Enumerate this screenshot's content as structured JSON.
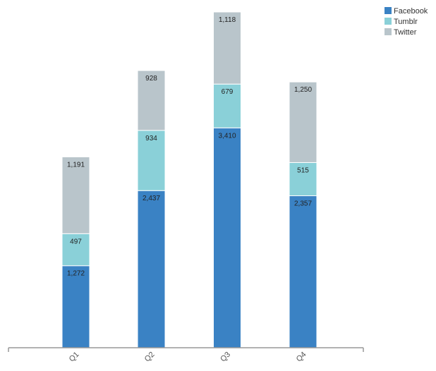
{
  "chart_data": {
    "type": "bar",
    "stacked": true,
    "title": "",
    "xlabel": "",
    "ylabel": "",
    "categories": [
      "Q1",
      "Q2",
      "Q3",
      "Q4"
    ],
    "series": [
      {
        "name": "Facebook",
        "color": "#3a82c4",
        "values": [
          1272,
          2437,
          3410,
          2357
        ],
        "labels": [
          "1,272",
          "2,437",
          "3,410",
          "2,357"
        ]
      },
      {
        "name": "Tumblr",
        "color": "#8ad0d8",
        "values": [
          497,
          934,
          679,
          515
        ],
        "labels": [
          "497",
          "934",
          "679",
          "515"
        ]
      },
      {
        "name": "Twitter",
        "color": "#b9c5cb",
        "values": [
          1191,
          928,
          1118,
          1250
        ],
        "labels": [
          "1,191",
          "928",
          "1,118",
          "1,250"
        ]
      }
    ],
    "legend_position": "top-right",
    "grid": false,
    "ylim": [
      0,
      5250
    ]
  },
  "legend": {
    "items": [
      {
        "label": "Facebook",
        "color": "#3a82c4"
      },
      {
        "label": "Tumblr",
        "color": "#8ad0d8"
      },
      {
        "label": "Twitter",
        "color": "#b9c5cb"
      }
    ]
  }
}
